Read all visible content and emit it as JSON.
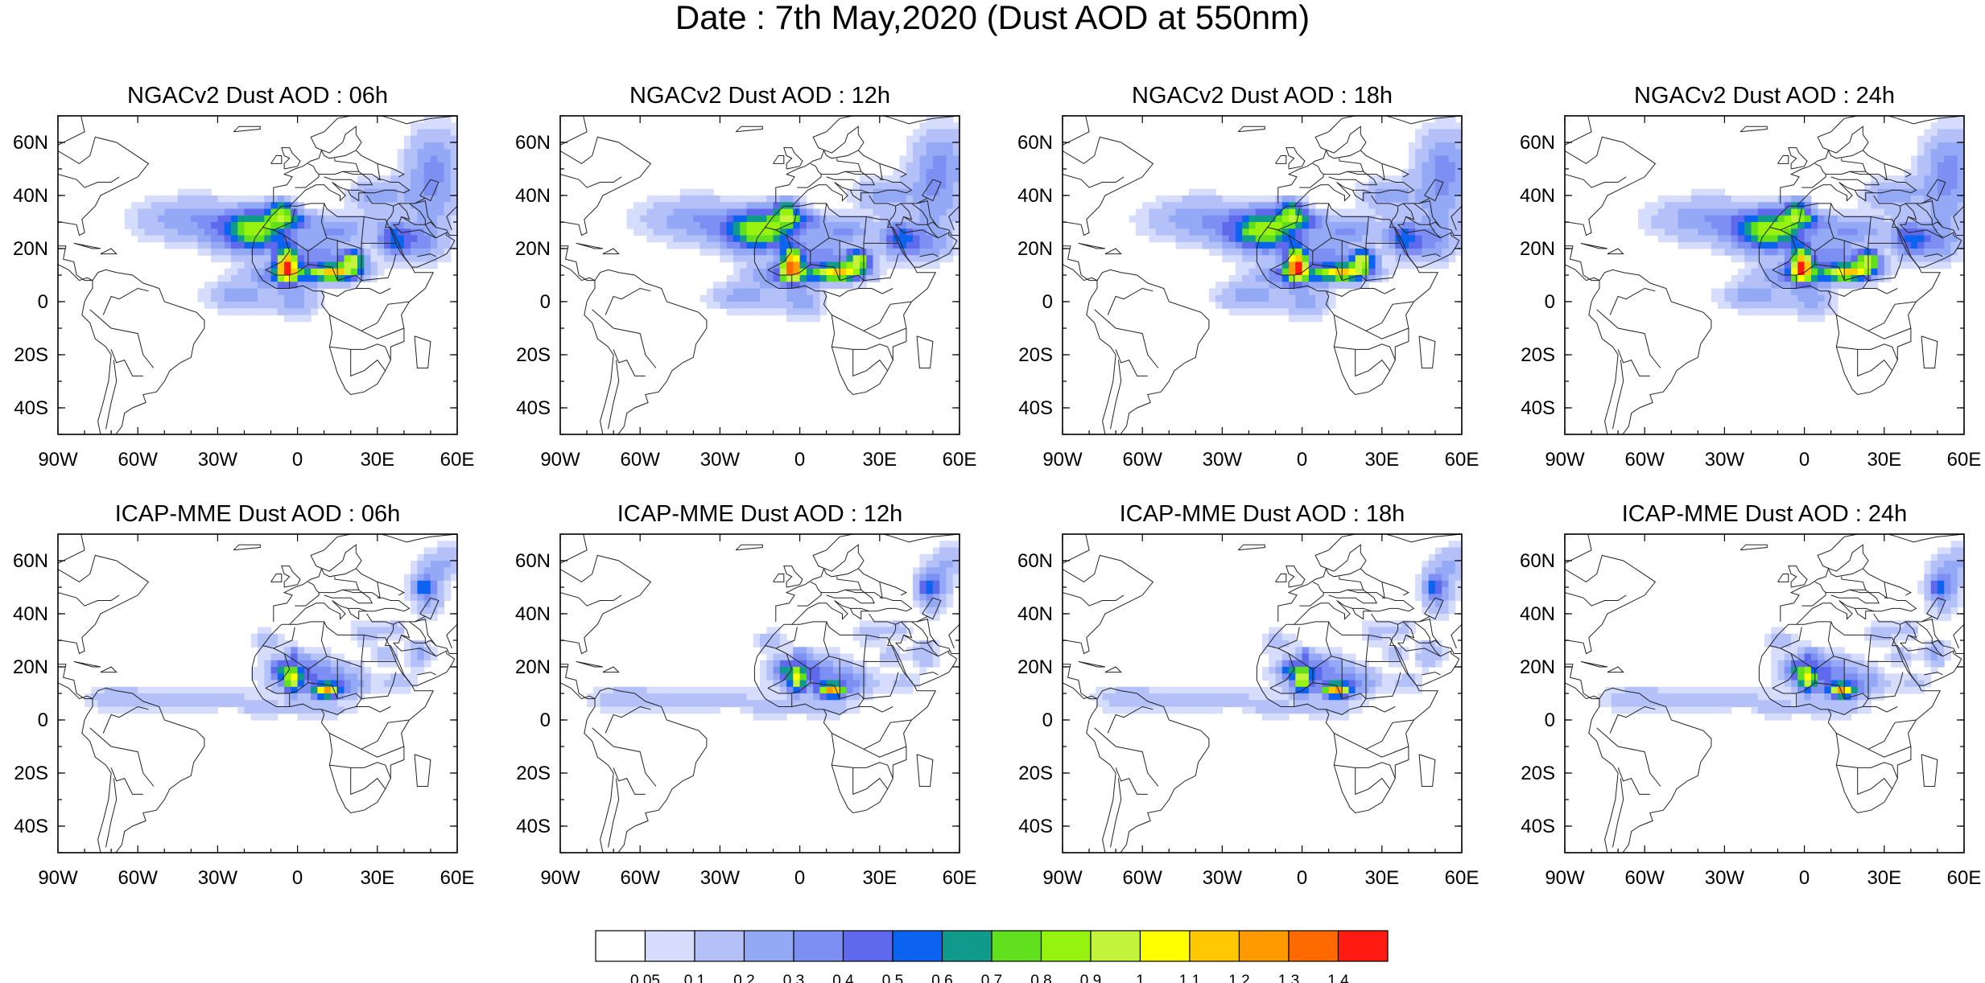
{
  "title": "Date : 7th May,2020 (Dust AOD at 550nm)",
  "panels": [
    {
      "title": "NGACv2 Dust AOD : 06h",
      "model": "NGAC",
      "hour": 6
    },
    {
      "title": "NGACv2 Dust AOD : 12h",
      "model": "NGAC",
      "hour": 12
    },
    {
      "title": "NGACv2 Dust AOD : 18h",
      "model": "NGAC",
      "hour": 18
    },
    {
      "title": "NGACv2 Dust AOD : 24h",
      "model": "NGAC",
      "hour": 24
    },
    {
      "title": "ICAP-MME Dust AOD : 06h",
      "model": "ICAP",
      "hour": 6
    },
    {
      "title": "ICAP-MME Dust AOD : 12h",
      "model": "ICAP",
      "hour": 12
    },
    {
      "title": "ICAP-MME Dust AOD : 18h",
      "model": "ICAP",
      "hour": 18
    },
    {
      "title": "ICAP-MME Dust AOD : 24h",
      "model": "ICAP",
      "hour": 24
    }
  ],
  "lon_ticks": [
    {
      "value": -90,
      "label": "90W"
    },
    {
      "value": -60,
      "label": "60W"
    },
    {
      "value": -30,
      "label": "30W"
    },
    {
      "value": 0,
      "label": "0"
    },
    {
      "value": 30,
      "label": "30E"
    },
    {
      "value": 60,
      "label": "60E"
    }
  ],
  "lat_ticks": [
    {
      "value": 60,
      "label": "60N"
    },
    {
      "value": 40,
      "label": "40N"
    },
    {
      "value": 20,
      "label": "20N"
    },
    {
      "value": 0,
      "label": "0"
    },
    {
      "value": -20,
      "label": "20S"
    },
    {
      "value": -40,
      "label": "40S"
    }
  ],
  "extent": {
    "lon": [
      -90,
      60
    ],
    "lat": [
      -50,
      70
    ]
  },
  "colorbar": {
    "colors": [
      "#ffffff",
      "#d6dcfb",
      "#b4c0f8",
      "#94a9f6",
      "#7d8ff2",
      "#5f69ec",
      "#0b63f0",
      "#0f9a8c",
      "#61e01d",
      "#96f20f",
      "#c3f43b",
      "#ffff00",
      "#ffc800",
      "#ff9b00",
      "#ff6a00",
      "#ff1a12"
    ],
    "labels": [
      "0.05",
      "0.1",
      "0.2",
      "0.3",
      "0.4",
      "0.5",
      "0.6",
      "0.7",
      "0.8",
      "0.9",
      "1",
      "1.1",
      "1.2",
      "1.3",
      "1.4"
    ]
  }
}
